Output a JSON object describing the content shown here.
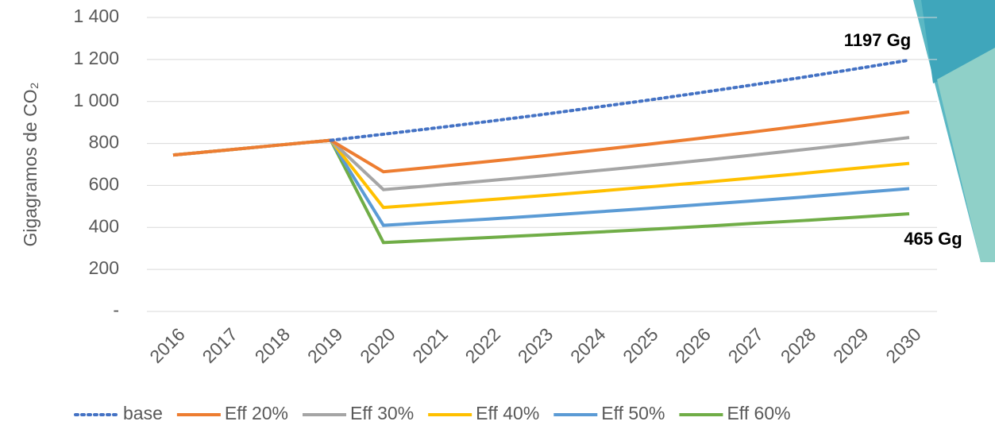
{
  "chart_data": {
    "type": "line",
    "y_label": "Gigagramos de CO₂",
    "x": [
      "2016",
      "2017",
      "2018",
      "2019",
      "2020",
      "2021",
      "2022",
      "2023",
      "2024",
      "2025",
      "2026",
      "2027",
      "2028",
      "2029",
      "2030"
    ],
    "series": [
      {
        "name": "base",
        "color": "#4472c4",
        "dash": "dotted",
        "values": [
          null,
          null,
          null,
          815,
          844,
          874,
          905,
          937,
          971,
          1005,
          1041,
          1078,
          1116,
          1156,
          1197
        ]
      },
      {
        "name": "Eff 20%",
        "color": "#ed7d31",
        "values": [
          745,
          768,
          792,
          815,
          665,
          689,
          714,
          740,
          767,
          795,
          824,
          854,
          885,
          917,
          950
        ]
      },
      {
        "name": "Eff 30%",
        "color": "#a5a5a5",
        "values": [
          745,
          768,
          792,
          815,
          580,
          601,
          623,
          645,
          669,
          693,
          718,
          744,
          771,
          799,
          828
        ]
      },
      {
        "name": "Eff 40%",
        "color": "#ffc000",
        "values": [
          745,
          768,
          792,
          815,
          495,
          513,
          532,
          551,
          571,
          592,
          613,
          635,
          658,
          682,
          705
        ]
      },
      {
        "name": "Eff 50%",
        "color": "#5b9bd5",
        "values": [
          745,
          768,
          792,
          815,
          410,
          425,
          440,
          456,
          473,
          490,
          508,
          526,
          545,
          565,
          585
        ]
      },
      {
        "name": "Eff 60%",
        "color": "#70ad47",
        "values": [
          745,
          768,
          792,
          815,
          328,
          340,
          352,
          364,
          377,
          390,
          404,
          419,
          433,
          449,
          465
        ]
      }
    ],
    "ylim": [
      0,
      1400
    ],
    "yticks": [
      {
        "value": 0,
        "label": "-"
      },
      200,
      400,
      600,
      800,
      {
        "value": 1000,
        "label": "1 000"
      },
      {
        "value": 1200,
        "label": "1 200"
      },
      {
        "value": 1400,
        "label": "1 400"
      }
    ],
    "grid": true,
    "legend": "bottom",
    "annotations": [
      "1197 Gg",
      "465 Gg"
    ]
  }
}
